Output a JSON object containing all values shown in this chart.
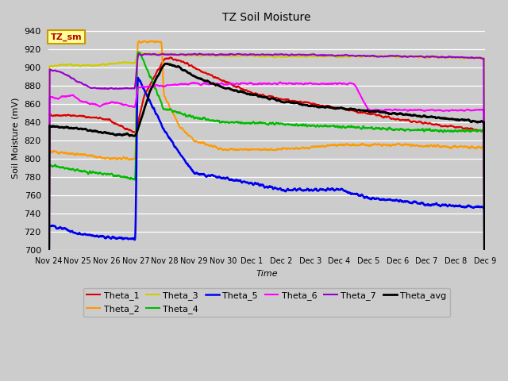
{
  "title": "TZ Soil Moisture",
  "ylabel": "Soil Moisture (mV)",
  "xlabel": "Time",
  "ylim": [
    700,
    945
  ],
  "bg_color": "#cccccc",
  "label_box_text": "TZ_sm",
  "series": {
    "Theta_1": {
      "color": "#dd0000",
      "lw": 1.5
    },
    "Theta_2": {
      "color": "#ff9900",
      "lw": 1.5
    },
    "Theta_3": {
      "color": "#cccc00",
      "lw": 1.5
    },
    "Theta_4": {
      "color": "#00bb00",
      "lw": 1.5
    },
    "Theta_5": {
      "color": "#0000ee",
      "lw": 1.8
    },
    "Theta_6": {
      "color": "#ff00ff",
      "lw": 1.5
    },
    "Theta_7": {
      "color": "#9900cc",
      "lw": 1.5
    },
    "Theta_avg": {
      "color": "#000000",
      "lw": 2.0
    }
  },
  "xtick_labels": [
    "Nov 24",
    "Nov 25",
    "Nov 26",
    "Nov 27",
    "Nov 28",
    "Nov 29",
    "Nov 30",
    "Dec 1",
    "Dec 2",
    "Dec 3",
    "Dec 4",
    "Dec 5",
    "Dec 6",
    "Dec 7",
    "Dec 8",
    "Dec 9"
  ]
}
